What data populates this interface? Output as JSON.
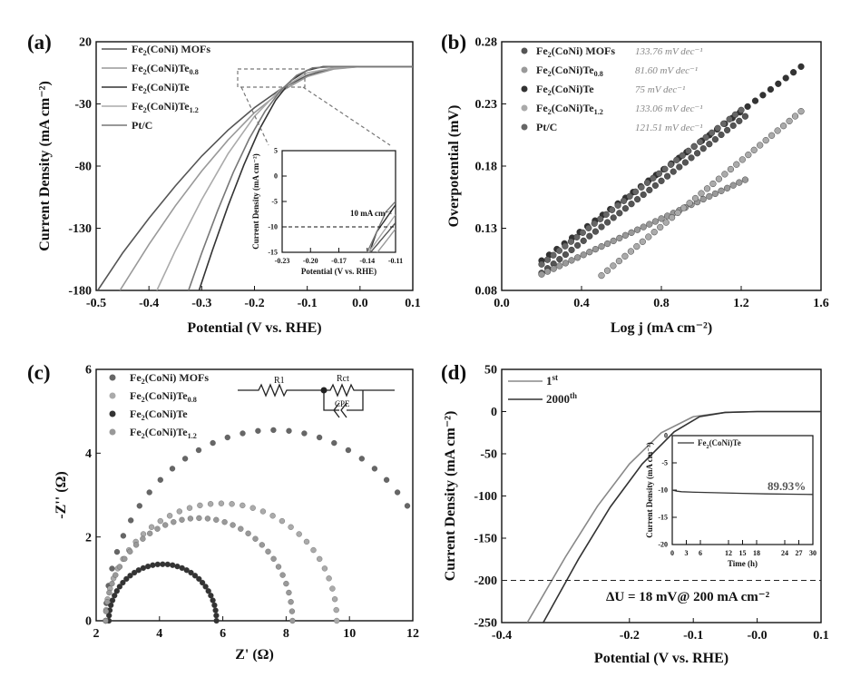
{
  "panel_labels": [
    "(a)",
    "(b)",
    "(c)",
    "(d)"
  ],
  "chart_data": [
    {
      "panel": "(a)",
      "type": "line",
      "xlabel": "Potential (V vs. RHE)",
      "ylabel": "Current Density (mA cm⁻²)",
      "xlim": [
        -0.5,
        0.1
      ],
      "ylim": [
        -180,
        20
      ],
      "xticks": [
        "-0.5",
        "-0.4",
        "-0.3",
        "-0.2",
        "-0.1",
        "0.0",
        "0.1"
      ],
      "yticks": [
        "20",
        "-30",
        "-80",
        "-130",
        "-180"
      ],
      "legend_position": "top-left",
      "series": [
        {
          "name": "Fe2(CoNi) MOFs",
          "x": [
            -0.497,
            -0.45,
            -0.4,
            -0.35,
            -0.3,
            -0.25,
            -0.2,
            -0.15,
            -0.1,
            -0.05,
            0.0,
            0.1
          ],
          "y": [
            -180,
            -150,
            -122,
            -96,
            -72,
            -51,
            -33,
            -18,
            -7,
            -1,
            0,
            0
          ]
        },
        {
          "name": "Fe2(CoNi)Te0.8",
          "x": [
            -0.455,
            -0.4,
            -0.35,
            -0.3,
            -0.25,
            -0.2,
            -0.15,
            -0.1,
            -0.05,
            0.0,
            0.1
          ],
          "y": [
            -180,
            -143,
            -112,
            -84,
            -59,
            -37,
            -20,
            -8,
            -2,
            0,
            0
          ]
        },
        {
          "name": "Fe2(CoNi)Te",
          "x": [
            -0.305,
            -0.28,
            -0.25,
            -0.22,
            -0.19,
            -0.16,
            -0.13,
            -0.1,
            -0.07,
            0.0,
            0.1
          ],
          "y": [
            -180,
            -148,
            -112,
            -79,
            -50,
            -27,
            -11,
            -3,
            0,
            0,
            0
          ]
        },
        {
          "name": "Fe2(CoNi)Te1.2",
          "x": [
            -0.385,
            -0.35,
            -0.3,
            -0.25,
            -0.2,
            -0.15,
            -0.1,
            -0.05,
            0.0,
            0.1
          ],
          "y": [
            -180,
            -148,
            -107,
            -70,
            -40,
            -18,
            -5,
            -1,
            0,
            0
          ]
        },
        {
          "name": "Pt/C",
          "x": [
            -0.325,
            -0.3,
            -0.27,
            -0.24,
            -0.21,
            -0.18,
            -0.15,
            -0.12,
            -0.09,
            -0.05,
            0.0,
            0.1
          ],
          "y": [
            -180,
            -150,
            -116,
            -85,
            -58,
            -36,
            -19,
            -7,
            -1,
            0,
            0,
            0
          ]
        }
      ],
      "inset": {
        "xlabel": "Potential (V vs. RHE)",
        "ylabel": "Current Density (mA cm⁻²)",
        "xlim": [
          -0.23,
          -0.11
        ],
        "ylim": [
          -15,
          5
        ],
        "xticks": [
          "-0.23",
          "-0.20",
          "-0.17",
          "-0.14",
          "-0.11"
        ],
        "yticks": [
          "5",
          "0",
          "-5",
          "-10",
          "-15"
        ],
        "annotation": "10 mA cm⁻²",
        "reference_line_y": -10
      }
    },
    {
      "panel": "(b)",
      "type": "line",
      "xlabel": "Log j (mA cm⁻²)",
      "ylabel": "Overpotential (mV)",
      "xlim": [
        0.0,
        1.6
      ],
      "ylim": [
        0.08,
        0.28
      ],
      "xticks": [
        "0.0",
        "0.4",
        "0.8",
        "1.2",
        "1.6"
      ],
      "yticks": [
        "0.28",
        "0.23",
        "0.18",
        "0.13",
        "0.08"
      ],
      "legend_position": "top-left",
      "series": [
        {
          "name": "Fe2(CoNi) MOFs",
          "slope_label": "133.76 mV dec⁻¹",
          "x": [
            0.2,
            1.22
          ],
          "y": [
            0.094,
            0.22
          ]
        },
        {
          "name": "Fe2(CoNi)Te0.8",
          "slope_label": "81.60 mV dec⁻¹",
          "x": [
            0.2,
            1.22
          ],
          "y": [
            0.093,
            0.169
          ]
        },
        {
          "name": "Fe2(CoNi)Te",
          "slope_label": "75 mV dec⁻¹",
          "x": [
            0.2,
            1.5
          ],
          "y": [
            0.104,
            0.26
          ]
        },
        {
          "name": "Fe2(CoNi)Te1.2",
          "slope_label": "133.06 mV dec⁻¹",
          "x": [
            0.5,
            1.5
          ],
          "y": [
            0.092,
            0.224
          ]
        },
        {
          "name": "Pt/C",
          "slope_label": "121.51 mV dec⁻¹",
          "x": [
            0.2,
            1.2
          ],
          "y": [
            0.101,
            0.225
          ]
        }
      ]
    },
    {
      "panel": "(c)",
      "type": "scatter",
      "xlabel": "Z' (Ω)",
      "ylabel": "-Z'' (Ω)",
      "xlim": [
        2,
        12
      ],
      "ylim": [
        0,
        6
      ],
      "xticks": [
        "2",
        "4",
        "6",
        "8",
        "10",
        "12"
      ],
      "yticks": [
        "6",
        "4",
        "2",
        "0"
      ],
      "legend_position": "top-left",
      "circuit_labels": [
        "R1",
        "Rct",
        "CPE"
      ],
      "series": [
        {
          "name": "Fe2(CoNi) MOFs",
          "rs": 2.3,
          "rct": 10.6,
          "peak": 4.55,
          "x_end": 12.0
        },
        {
          "name": "Fe2(CoNi)Te0.8",
          "rs": 2.3,
          "rct": 7.3,
          "peak": 2.8,
          "x_end": 9.6
        },
        {
          "name": "Fe2(CoNi)Te",
          "rs": 2.4,
          "rct": 3.4,
          "peak": 1.35,
          "x_end": 5.8
        },
        {
          "name": "Fe2(CoNi)Te1.2",
          "rs": 2.3,
          "rct": 5.9,
          "peak": 2.45,
          "x_end": 8.2
        }
      ]
    },
    {
      "panel": "(d)",
      "type": "line",
      "xlabel": "Potential (V vs. RHE)",
      "ylabel": "Current Density (mA cm⁻²)",
      "xlim": [
        -0.4,
        0.1
      ],
      "ylim": [
        -250,
        50
      ],
      "xticks": [
        "-0.4",
        "-0.2",
        "-0.1",
        "-0.0",
        "0.1"
      ],
      "yticks": [
        "50",
        "0",
        "-50",
        "-100",
        "-150",
        "-200",
        "-250"
      ],
      "legend_position": "top-left",
      "annotation": "ΔU = 18 mV@ 200 mA cm⁻²",
      "reference_line_y": -200,
      "series": [
        {
          "name": "1st",
          "x": [
            -0.36,
            -0.3,
            -0.25,
            -0.2,
            -0.15,
            -0.1,
            -0.05,
            0.0,
            0.1
          ],
          "y": [
            -250,
            -172,
            -112,
            -62,
            -25,
            -6,
            -1,
            0,
            0
          ]
        },
        {
          "name": "2000th",
          "x": [
            -0.335,
            -0.28,
            -0.23,
            -0.18,
            -0.13,
            -0.09,
            -0.05,
            0.0,
            0.1
          ],
          "y": [
            -250,
            -175,
            -113,
            -62,
            -24,
            -6,
            -1,
            0,
            0
          ]
        }
      ],
      "inset": {
        "type": "line",
        "legend": "Fe2(CoNi)Te",
        "xlabel": "Time (h)",
        "ylabel": "Current Density (mA cm⁻²)",
        "xlim": [
          0,
          30
        ],
        "ylim": [
          -20,
          0
        ],
        "xticks": [
          "0",
          "3",
          "6",
          "12",
          "15",
          "18",
          "24",
          "27",
          "30"
        ],
        "yticks": [
          "0",
          "-5",
          "-10",
          "-15",
          "-20"
        ],
        "annotation": "89.93%",
        "x": [
          0,
          1,
          2,
          5,
          10,
          15,
          20,
          25,
          30
        ],
        "y": [
          -10.0,
          -10.2,
          -10.3,
          -10.4,
          -10.5,
          -10.6,
          -10.7,
          -10.75,
          -10.8
        ]
      }
    }
  ]
}
